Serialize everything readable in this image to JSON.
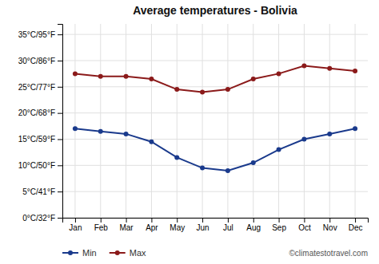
{
  "chart_data": {
    "type": "line",
    "title": "Average temperatures - Bolivia",
    "categories": [
      "Jan",
      "Feb",
      "Mar",
      "Apr",
      "May",
      "Jun",
      "Jul",
      "Aug",
      "Sep",
      "Oct",
      "Nov",
      "Dec"
    ],
    "series": [
      {
        "name": "Min",
        "color": "#1a3a8c",
        "marker": "circle",
        "values": [
          17,
          16.5,
          16,
          14.5,
          11.5,
          9.5,
          9,
          10.5,
          13,
          15,
          16,
          17
        ]
      },
      {
        "name": "Max",
        "color": "#8b1a1a",
        "marker": "circle",
        "values": [
          27.5,
          27,
          27,
          26.5,
          24.5,
          24,
          24.5,
          26.5,
          27.5,
          29,
          28.5,
          28
        ]
      }
    ],
    "ylim": [
      0,
      37
    ],
    "yticks": [
      {
        "value": 0,
        "label": "0°C/32°F"
      },
      {
        "value": 5,
        "label": "5°C/41°F"
      },
      {
        "value": 10,
        "label": "10°C/50°F"
      },
      {
        "value": 15,
        "label": "15°C/59°F"
      },
      {
        "value": 20,
        "label": "20°C/68°F"
      },
      {
        "value": 25,
        "label": "25°C/77°F"
      },
      {
        "value": 30,
        "label": "30°C/86°F"
      },
      {
        "value": 35,
        "label": "35°C/95°F"
      }
    ],
    "grid": true,
    "legend": "bottom",
    "annotations": [
      "©climatestotravel.com"
    ]
  }
}
